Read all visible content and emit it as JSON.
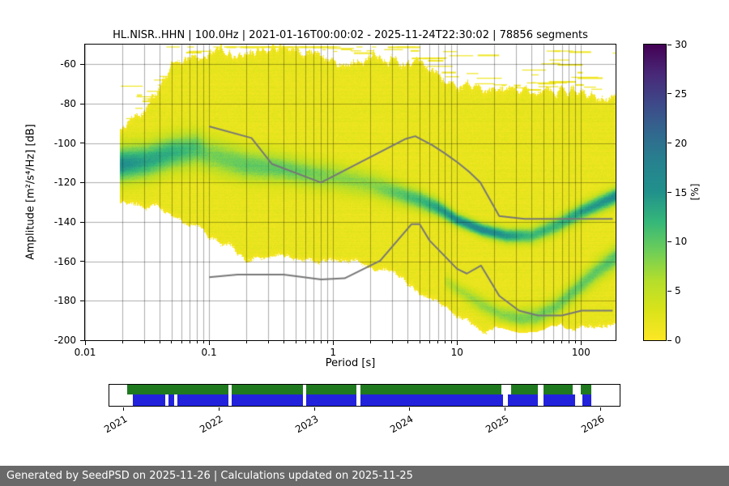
{
  "chart_data": [
    {
      "type": "heatmap",
      "name": "ppsd-probability-density",
      "title": "HL.NISR..HHN | 100.0Hz | 2021-01-16T00:00:02 - 2025-11-24T22:30:02 | 78856 segments",
      "xlabel": "Period [s]",
      "ylabel": "Amplitude [m²/s⁴/Hz] [dB]",
      "x_scale": "log",
      "xlim": [
        0.01,
        190
      ],
      "ylim": [
        -200,
        -50
      ],
      "grid": true,
      "x_tick_labels": [
        "0.01",
        "0.1",
        "1",
        "10",
        "100"
      ],
      "x_tick_values": [
        0.01,
        0.1,
        1,
        10,
        100
      ],
      "y_tick_values": [
        -60,
        -80,
        -100,
        -120,
        -140,
        -160,
        -180,
        -200
      ],
      "colorbar": {
        "label": "[%]",
        "min": 0,
        "max": 30,
        "ticks": [
          0,
          5,
          10,
          15,
          20,
          25,
          30
        ],
        "colormap": "viridis reversed (0% = yellow, 30% = dark purple)",
        "gradient_hex_bottom_to_top": [
          "#fde725",
          "#dae319",
          "#b5de2b",
          "#6ece58",
          "#35b779",
          "#21918c",
          "#26828e",
          "#31688e",
          "#3e4989",
          "#482878",
          "#440154"
        ]
      },
      "distribution": {
        "data_period_min": 0.019,
        "cloud_percent": 2,
        "log_period_knots": [
          -1.74,
          -1.5,
          -1.3,
          -1.1,
          -1.0,
          -0.7,
          -0.4,
          -0.15,
          0,
          0.3,
          0.5,
          0.7,
          0.85,
          1.0,
          1.2,
          1.4,
          1.6,
          1.8,
          2.0,
          2.28
        ],
        "mode_center_db": [
          -111,
          -109,
          -105,
          -103,
          -106,
          -111,
          -113,
          -116,
          -117,
          -121,
          -125,
          -129,
          -133,
          -139,
          -144,
          -147,
          -147,
          -142,
          -135,
          -127
        ],
        "mode_sigma_db": [
          6,
          6,
          6,
          6,
          6,
          5.5,
          5,
          5,
          5,
          4.5,
          4,
          3.5,
          3,
          2.3,
          2.3,
          2.5,
          2.8,
          3,
          3,
          3
        ],
        "mode_peak_percent": [
          14,
          12,
          11,
          9,
          7,
          8,
          8,
          7,
          6,
          6,
          8,
          10,
          12,
          14,
          15,
          13,
          10,
          10,
          12,
          14
        ],
        "cloud_top_db": [
          -92,
          -80,
          -60,
          -52,
          -52,
          -52,
          -52,
          -53,
          -55,
          -57,
          -54,
          -60,
          -66,
          -70,
          -72,
          -75,
          -74,
          -70,
          -72,
          -78
        ],
        "cloud_bottom_db": [
          -130,
          -133,
          -136,
          -141,
          -148,
          -160,
          -160,
          -161,
          -160,
          -163,
          -168,
          -177,
          -184,
          -190,
          -194,
          -196,
          -196,
          -195,
          -194,
          -193
        ],
        "secondary_knots": [
          0.9,
          1.0,
          1.1,
          1.2,
          1.35,
          1.5,
          1.65,
          1.8,
          2.0,
          2.15,
          2.28
        ],
        "secondary_center_db": [
          -170,
          -174,
          -178,
          -182,
          -187,
          -189,
          -188,
          -183,
          -172,
          -164,
          -158
        ],
        "secondary_sigma_db": [
          2.5,
          2.5,
          2.8,
          3,
          3,
          3.2,
          3.4,
          3.6,
          3.8,
          4,
          4
        ],
        "secondary_peak_percent": [
          3.5,
          4.5,
          5,
          5.5,
          6,
          7,
          7,
          7,
          8,
          8,
          9
        ]
      },
      "noise_models": {
        "color": "#777777",
        "high": {
          "periods": [
            0.1,
            0.22,
            0.32,
            0.8,
            3.8,
            4.6,
            6.3,
            7.9,
            10.2,
            12.5,
            15.4,
            21.9,
            35.0,
            180.0
          ],
          "db": [
            -91.5,
            -97.4,
            -110.5,
            -120.0,
            -98.0,
            -96.5,
            -101.0,
            -105.0,
            -110.0,
            -114.5,
            -120.0,
            -137.0,
            -138.5,
            -138.5
          ]
        },
        "low": {
          "periods": [
            0.1,
            0.17,
            0.4,
            0.8,
            1.24,
            2.4,
            4.3,
            5.0,
            6.0,
            10.0,
            12.0,
            15.6,
            21.9,
            31.6,
            45.0,
            70.0,
            101.0,
            180.0
          ],
          "db": [
            -168.0,
            -166.7,
            -166.7,
            -169.2,
            -168.6,
            -159.7,
            -141.1,
            -141.1,
            -149.4,
            -163.8,
            -166.2,
            -162.1,
            -177.5,
            -185.0,
            -187.5,
            -187.5,
            -185.0,
            -185.0
          ]
        }
      }
    },
    {
      "type": "timeline",
      "name": "data-availability",
      "axis_range": [
        2020.85,
        2026.2
      ],
      "x_ticks": [
        "2021",
        "2022",
        "2023",
        "2024",
        "2025",
        "2026"
      ],
      "x_tick_values": [
        2021,
        2022,
        2023,
        2024,
        2025,
        2026
      ],
      "rows": [
        {
          "name": "top",
          "color": "#1f7a1f",
          "height_frac": 0.45,
          "segments": [
            [
              2021.04,
              2022.1
            ],
            [
              2022.13,
              2022.88
            ],
            [
              2022.91,
              2023.44
            ],
            [
              2023.48,
              2024.96
            ],
            [
              2025.06,
              2025.34
            ],
            [
              2025.4,
              2025.71
            ],
            [
              2025.79,
              2025.9
            ]
          ]
        },
        {
          "name": "bottom",
          "color": "#2222dd",
          "height_frac": 0.55,
          "segments": [
            [
              2021.1,
              2021.44
            ],
            [
              2021.47,
              2021.53
            ],
            [
              2021.56,
              2022.1
            ],
            [
              2022.13,
              2022.88
            ],
            [
              2022.91,
              2023.44
            ],
            [
              2023.48,
              2024.98
            ],
            [
              2025.03,
              2025.34
            ],
            [
              2025.4,
              2025.73
            ],
            [
              2025.81,
              2025.9
            ]
          ]
        }
      ]
    }
  ],
  "footer": {
    "text": "Generated by SeedPSD on 2025-11-26 | Calculations updated on 2025-11-25"
  }
}
